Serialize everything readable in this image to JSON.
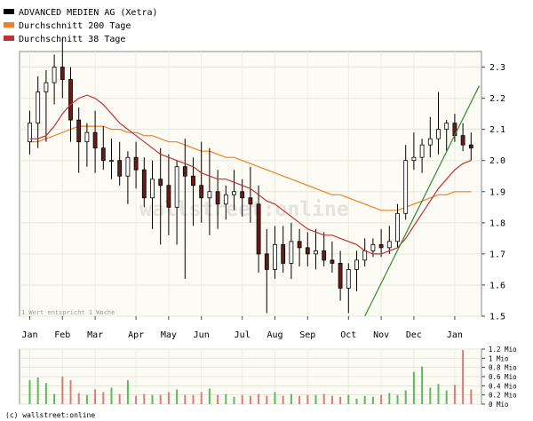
{
  "chart_data": {
    "type": "candlestick",
    "legend": [
      {
        "name": "ADVANCED MEDIEN AG (Xetra)",
        "color": "#000000"
      },
      {
        "name": "Durchschnitt 200 Tage",
        "color": "#f07f2a"
      },
      {
        "name": "Durchschnitt 38 Tage",
        "color": "#c0303a"
      }
    ],
    "legend_placement": "top-left",
    "watermark": "wallstreet:online",
    "note": "1 Wert entspricht 1 Woche",
    "copyright": "(c) wallstreet:online",
    "y_axis": {
      "min": 1.5,
      "max": 2.35,
      "ticks": [
        1.5,
        1.6,
        1.7,
        1.8,
        1.9,
        2.0,
        2.1,
        2.2,
        2.3
      ],
      "position": "right"
    },
    "x_axis": {
      "months": [
        {
          "label": "Jan",
          "week": 1
        },
        {
          "label": "Feb",
          "week": 5
        },
        {
          "label": "Mar",
          "week": 9
        },
        {
          "label": "Apr",
          "week": 14
        },
        {
          "label": "May",
          "week": 18
        },
        {
          "label": "Jun",
          "week": 22
        },
        {
          "label": "Jul",
          "week": 27
        },
        {
          "label": "Aug",
          "week": 31
        },
        {
          "label": "Sep",
          "week": 35
        },
        {
          "label": "Oct",
          "week": 40
        },
        {
          "label": "Nov",
          "week": 44
        },
        {
          "label": "Dec",
          "week": 48
        },
        {
          "label": "Jan",
          "week": 53
        }
      ]
    },
    "weeks": [
      1,
      2,
      3,
      4,
      5,
      6,
      7,
      8,
      9,
      10,
      11,
      12,
      13,
      14,
      15,
      16,
      17,
      18,
      19,
      20,
      21,
      22,
      23,
      24,
      25,
      26,
      27,
      28,
      29,
      30,
      31,
      32,
      33,
      34,
      35,
      36,
      37,
      38,
      39,
      40,
      41,
      42,
      43,
      44,
      45,
      46,
      47,
      48,
      49,
      50,
      51,
      52,
      53,
      54,
      55
    ],
    "ohlc": [
      [
        2.06,
        2.16,
        2.02,
        2.12
      ],
      [
        2.12,
        2.27,
        2.04,
        2.22
      ],
      [
        2.22,
        2.29,
        2.06,
        2.25
      ],
      [
        2.25,
        2.34,
        2.18,
        2.3
      ],
      [
        2.3,
        2.39,
        2.2,
        2.26
      ],
      [
        2.26,
        2.3,
        2.06,
        2.13
      ],
      [
        2.13,
        2.17,
        1.96,
        2.06
      ],
      [
        2.06,
        2.12,
        1.98,
        2.09
      ],
      [
        2.09,
        2.16,
        1.96,
        2.04
      ],
      [
        2.04,
        2.11,
        1.97,
        2.0
      ],
      [
        2.0,
        2.07,
        1.94,
        2.0
      ],
      [
        2.0,
        2.06,
        1.92,
        1.95
      ],
      [
        1.95,
        2.03,
        1.86,
        2.01
      ],
      [
        2.01,
        2.06,
        1.91,
        1.97
      ],
      [
        1.97,
        2.01,
        1.85,
        1.88
      ],
      [
        1.88,
        2.0,
        1.78,
        1.94
      ],
      [
        1.94,
        2.04,
        1.73,
        1.92
      ],
      [
        1.92,
        2.02,
        1.76,
        1.85
      ],
      [
        1.85,
        2.0,
        1.73,
        1.98
      ],
      [
        1.98,
        2.07,
        1.62,
        1.95
      ],
      [
        1.95,
        2.01,
        1.79,
        1.92
      ],
      [
        1.92,
        2.06,
        1.8,
        1.88
      ],
      [
        1.88,
        2.04,
        1.76,
        1.9
      ],
      [
        1.9,
        1.97,
        1.78,
        1.86
      ],
      [
        1.86,
        1.92,
        1.81,
        1.89
      ],
      [
        1.89,
        1.97,
        1.84,
        1.9
      ],
      [
        1.9,
        1.94,
        1.82,
        1.88
      ],
      [
        1.88,
        1.98,
        1.8,
        1.86
      ],
      [
        1.86,
        1.92,
        1.64,
        1.7
      ],
      [
        1.7,
        1.78,
        1.51,
        1.65
      ],
      [
        1.65,
        1.79,
        1.62,
        1.73
      ],
      [
        1.73,
        1.79,
        1.64,
        1.67
      ],
      [
        1.67,
        1.8,
        1.62,
        1.74
      ],
      [
        1.74,
        1.78,
        1.66,
        1.72
      ],
      [
        1.72,
        1.77,
        1.66,
        1.7
      ],
      [
        1.7,
        1.78,
        1.65,
        1.71
      ],
      [
        1.71,
        1.77,
        1.66,
        1.68
      ],
      [
        1.68,
        1.74,
        1.64,
        1.67
      ],
      [
        1.67,
        1.71,
        1.55,
        1.59
      ],
      [
        1.59,
        1.67,
        1.51,
        1.65
      ],
      [
        1.65,
        1.71,
        1.58,
        1.68
      ],
      [
        1.68,
        1.75,
        1.66,
        1.71
      ],
      [
        1.71,
        1.75,
        1.69,
        1.73
      ],
      [
        1.73,
        1.78,
        1.69,
        1.72
      ],
      [
        1.72,
        1.79,
        1.7,
        1.74
      ],
      [
        1.74,
        1.86,
        1.72,
        1.83
      ],
      [
        1.83,
        2.05,
        1.81,
        2.0
      ],
      [
        2.0,
        2.09,
        1.97,
        2.01
      ],
      [
        2.01,
        2.07,
        1.96,
        2.05
      ],
      [
        2.05,
        2.14,
        2.01,
        2.07
      ],
      [
        2.07,
        2.22,
        2.02,
        2.1
      ],
      [
        2.1,
        2.13,
        2.03,
        2.12
      ],
      [
        2.12,
        2.15,
        2.06,
        2.08
      ],
      [
        2.08,
        2.12,
        2.03,
        2.05
      ],
      [
        2.05,
        2.09,
        2.0,
        2.04
      ]
    ],
    "ma38": [
      2.07,
      2.07,
      2.08,
      2.11,
      2.15,
      2.18,
      2.2,
      2.21,
      2.2,
      2.18,
      2.15,
      2.12,
      2.1,
      2.08,
      2.06,
      2.04,
      2.02,
      2.01,
      2.0,
      1.99,
      1.98,
      1.96,
      1.95,
      1.94,
      1.94,
      1.93,
      1.92,
      1.91,
      1.89,
      1.87,
      1.86,
      1.84,
      1.82,
      1.8,
      1.78,
      1.77,
      1.76,
      1.76,
      1.75,
      1.74,
      1.73,
      1.71,
      1.7,
      1.7,
      1.71,
      1.72,
      1.75,
      1.79,
      1.83,
      1.87,
      1.91,
      1.94,
      1.97,
      1.99,
      2.0
    ],
    "ma200": [
      2.06,
      2.06,
      2.07,
      2.08,
      2.09,
      2.1,
      2.11,
      2.11,
      2.11,
      2.11,
      2.1,
      2.1,
      2.09,
      2.09,
      2.08,
      2.08,
      2.07,
      2.06,
      2.06,
      2.05,
      2.04,
      2.03,
      2.03,
      2.02,
      2.01,
      2.01,
      2.0,
      1.99,
      1.98,
      1.97,
      1.96,
      1.95,
      1.94,
      1.93,
      1.92,
      1.91,
      1.9,
      1.89,
      1.89,
      1.88,
      1.87,
      1.86,
      1.85,
      1.84,
      1.84,
      1.84,
      1.85,
      1.86,
      1.87,
      1.88,
      1.89,
      1.89,
      1.9,
      1.9,
      1.9
    ],
    "trendline": {
      "from": {
        "week": 42,
        "value": 1.5
      },
      "to": {
        "week": 56,
        "value": 2.24
      }
    },
    "volume_axis": {
      "min": 0,
      "max": 1.2,
      "unit": "Mio",
      "tick_labels": [
        "1.2 Mio",
        "1 Mio",
        "0.8 Mio",
        "0.6 Mio",
        "0.4 Mio",
        "0.2 Mio",
        "0 Mio"
      ]
    },
    "volume": [
      0.52,
      0.58,
      0.46,
      0.22,
      0.6,
      0.52,
      0.24,
      0.2,
      0.32,
      0.26,
      0.36,
      0.22,
      0.52,
      0.18,
      0.22,
      0.2,
      0.2,
      0.26,
      0.32,
      0.2,
      0.2,
      0.26,
      0.34,
      0.2,
      0.22,
      0.16,
      0.2,
      0.18,
      0.22,
      0.18,
      0.26,
      0.18,
      0.22,
      0.18,
      0.2,
      0.2,
      0.22,
      0.18,
      0.16,
      0.2,
      0.12,
      0.18,
      0.16,
      0.2,
      0.24,
      0.2,
      0.3,
      0.7,
      0.82,
      0.36,
      0.44,
      0.3,
      0.42,
      1.18,
      0.32
    ]
  }
}
